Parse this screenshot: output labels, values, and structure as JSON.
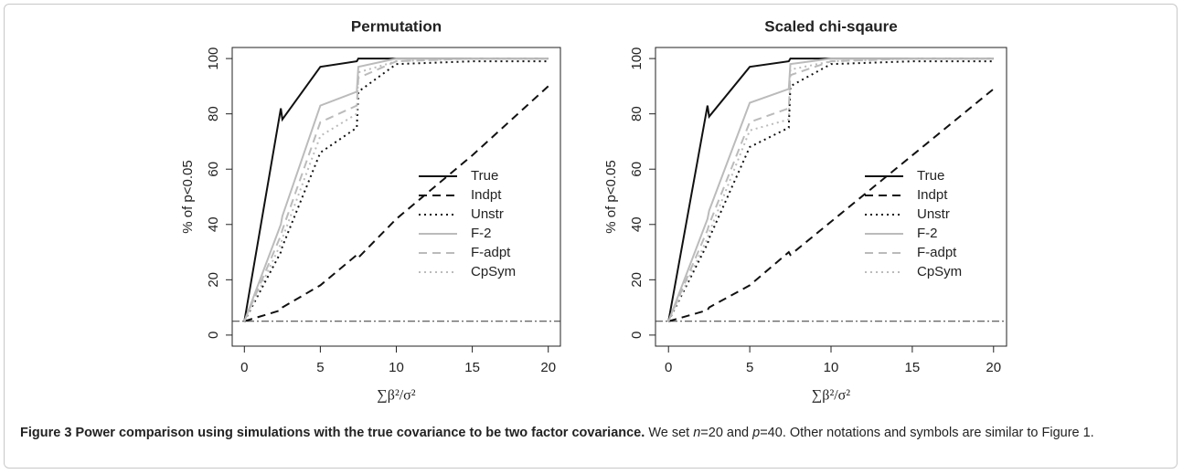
{
  "chart_data": [
    {
      "type": "line",
      "title": "Permutation",
      "xlabel": "∑β²/σ²",
      "ylabel": "% of p<0.05",
      "x": [
        0,
        2.4,
        2.5,
        5,
        7.4,
        7.5,
        10,
        15,
        20
      ],
      "xlim": [
        -0.8,
        20.8
      ],
      "ylim": [
        -4,
        104
      ],
      "xticks": [
        0,
        5,
        10,
        15,
        20
      ],
      "yticks": [
        0,
        20,
        40,
        60,
        80,
        100
      ],
      "reference_line": 5,
      "legend": "center right",
      "series": [
        {
          "name": "True",
          "color": "#111111",
          "linestyle": "solid",
          "values": [
            5,
            82,
            78,
            97,
            99,
            100,
            100,
            100,
            100
          ]
        },
        {
          "name": "Indpt",
          "color": "#111111",
          "linestyle": "dashed",
          "values": [
            5,
            9,
            10,
            18,
            29,
            28,
            42,
            65,
            90
          ]
        },
        {
          "name": "Unstr",
          "color": "#111111",
          "linestyle": "dotted",
          "values": [
            5,
            30,
            32,
            66,
            75,
            88,
            98,
            99,
            99
          ]
        },
        {
          "name": "F-2",
          "color": "#bbbbbb",
          "linestyle": "solid",
          "values": [
            5,
            40,
            43,
            83,
            88,
            97,
            100,
            100,
            100
          ]
        },
        {
          "name": "F-adpt",
          "color": "#bbbbbb",
          "linestyle": "dashed",
          "values": [
            5,
            36,
            38,
            77,
            83,
            93,
            99,
            100,
            100
          ]
        },
        {
          "name": "CpSym",
          "color": "#bbbbbb",
          "linestyle": "dotted",
          "values": [
            5,
            33,
            35,
            72,
            80,
            95,
            99,
            100,
            100
          ]
        }
      ]
    },
    {
      "type": "line",
      "title": "Scaled chi-sqaure",
      "xlabel": "∑β²/σ²",
      "ylabel": "% of p<0.05",
      "x": [
        0,
        2.4,
        2.5,
        5,
        7.4,
        7.5,
        10,
        15,
        20
      ],
      "xlim": [
        -0.8,
        20.8
      ],
      "ylim": [
        -4,
        104
      ],
      "xticks": [
        0,
        5,
        10,
        15,
        20
      ],
      "yticks": [
        0,
        20,
        40,
        60,
        80,
        100
      ],
      "reference_line": 5,
      "legend": "center right",
      "series": [
        {
          "name": "True",
          "color": "#111111",
          "linestyle": "solid",
          "values": [
            5,
            83,
            79,
            97,
            99,
            100,
            100,
            100,
            100
          ]
        },
        {
          "name": "Indpt",
          "color": "#111111",
          "linestyle": "dashed",
          "values": [
            5,
            9,
            10,
            18,
            30,
            29,
            41,
            65,
            89
          ]
        },
        {
          "name": "Unstr",
          "color": "#111111",
          "linestyle": "dotted",
          "values": [
            5,
            33,
            35,
            68,
            75,
            90,
            98,
            99,
            99
          ]
        },
        {
          "name": "F-2",
          "color": "#bbbbbb",
          "linestyle": "solid",
          "values": [
            5,
            42,
            45,
            84,
            89,
            98,
            100,
            100,
            100
          ]
        },
        {
          "name": "F-adpt",
          "color": "#bbbbbb",
          "linestyle": "dashed",
          "values": [
            5,
            38,
            40,
            77,
            82,
            94,
            99,
            100,
            100
          ]
        },
        {
          "name": "CpSym",
          "color": "#bbbbbb",
          "linestyle": "dotted",
          "values": [
            5,
            35,
            37,
            74,
            78,
            96,
            99,
            100,
            100
          ]
        }
      ]
    }
  ],
  "caption": {
    "label": "Figure 3",
    "title": "Power comparison using simulations with the true covariance to be two factor covariance.",
    "text": [
      "We set ",
      "n",
      "=20 and ",
      "p",
      "=40. Other notations and symbols are similar to Figure 1."
    ]
  }
}
